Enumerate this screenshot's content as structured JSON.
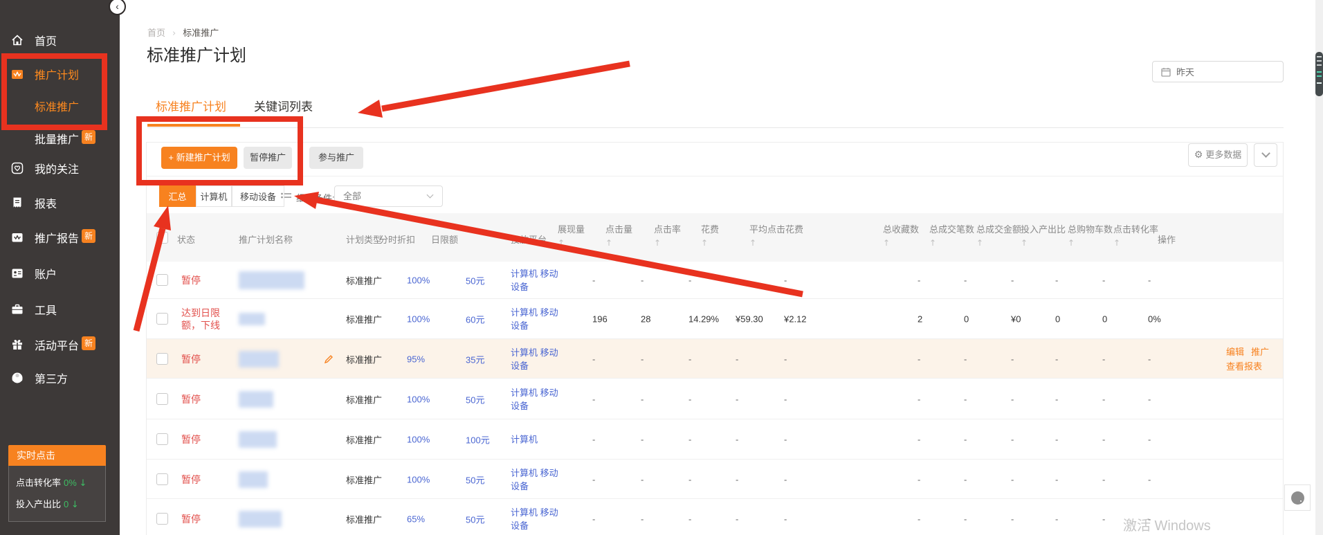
{
  "sidebar": {
    "items": [
      {
        "label": "首页",
        "icon": "home-icon"
      },
      {
        "label": "推广计划",
        "icon": "campaign-icon",
        "active": true
      },
      {
        "label": "标准推广",
        "submenu": true,
        "active": true
      },
      {
        "label": "批量推广",
        "submenu": true,
        "badge": "新"
      },
      {
        "label": "我的关注",
        "icon": "heart-icon"
      },
      {
        "label": "报表",
        "icon": "report-icon"
      },
      {
        "label": "推广报告",
        "icon": "promo-report-icon",
        "badge": "新"
      },
      {
        "label": "账户",
        "icon": "account-icon"
      },
      {
        "label": "工具",
        "icon": "tools-icon"
      },
      {
        "label": "活动平台",
        "icon": "activity-icon",
        "badge": "新"
      },
      {
        "label": "第三方",
        "icon": "third-party-icon"
      }
    ],
    "realtime_panel": {
      "title": "实时点击",
      "metrics": [
        {
          "label": "点击转化率",
          "value": "0%",
          "trend": "down"
        },
        {
          "label": "投入产出比",
          "value": "0",
          "trend": "down"
        }
      ]
    }
  },
  "breadcrumb": {
    "home": "首页",
    "separator": "›",
    "current": "标准推广"
  },
  "page_title": "标准推广计划",
  "date_filter": {
    "value": "昨天"
  },
  "tabs": [
    {
      "label": "标准推广计划",
      "active": true
    },
    {
      "label": "关键词列表",
      "active": false
    }
  ],
  "toolbar": {
    "new_plan": "新建推广计划",
    "plus": "+",
    "pause": "暂停推广",
    "join": "参与推广",
    "more_data": "更多数据"
  },
  "filters": {
    "segments": [
      {
        "label": "汇总",
        "active": true
      },
      {
        "label": "计算机",
        "active": false
      },
      {
        "label": "移动设备",
        "active": false
      }
    ],
    "condition_label": "细分条件:",
    "condition_value": "全部"
  },
  "table": {
    "columns": [
      {
        "key": "check",
        "label": "",
        "type": "checkbox"
      },
      {
        "key": "status",
        "label": "状态"
      },
      {
        "key": "name",
        "label": "推广计划名称"
      },
      {
        "key": "plan_type",
        "label": "计划类型"
      },
      {
        "key": "discount",
        "label": "分时折扣"
      },
      {
        "key": "limit",
        "label": "日限额"
      },
      {
        "key": "platform",
        "label": "投放平台"
      },
      {
        "key": "impressions",
        "label": "展现量",
        "sortable": true
      },
      {
        "key": "clicks",
        "label": "点击量",
        "sortable": true
      },
      {
        "key": "ctr",
        "label": "点击率",
        "sortable": true
      },
      {
        "key": "cost",
        "label": "花费",
        "sortable": true
      },
      {
        "key": "avg_cpc",
        "label": "平均点击花费",
        "sortable": true
      },
      {
        "key": "favorites",
        "label": "总收藏数",
        "sortable": true
      },
      {
        "key": "orders",
        "label": "总成交笔数",
        "sortable": true
      },
      {
        "key": "order_amount",
        "label": "总成交金额",
        "sortable": true
      },
      {
        "key": "roi",
        "label": "投入产出比",
        "sortable": true
      },
      {
        "key": "carts",
        "label": "总购物车数",
        "sortable": true
      },
      {
        "key": "conv_rate",
        "label": "点击转化率",
        "sortable": true
      },
      {
        "key": "actions",
        "label": "操作"
      }
    ],
    "rows": [
      {
        "status": [
          "暂停"
        ],
        "plan_type": "标准推广",
        "discount": "100%",
        "limit": "50元",
        "platform": [
          "计算机 移动",
          "设备"
        ],
        "metrics": [
          "-",
          "-",
          "-",
          "-",
          "-",
          "-",
          "-",
          "-",
          "-",
          "-",
          "-"
        ]
      },
      {
        "status": [
          "达到日限",
          "额，下线"
        ],
        "plan_type": "标准推广",
        "discount": "100%",
        "limit": "60元",
        "platform": [
          "计算机 移动",
          "设备"
        ],
        "metrics": [
          "196",
          "28",
          "14.29%",
          "¥59.30",
          "¥2.12",
          "2",
          "0",
          "¥0",
          "0",
          "0",
          "0%"
        ]
      },
      {
        "status": [
          "暂停"
        ],
        "highlighted": true,
        "editable": true,
        "plan_type": "标准推广",
        "discount": "95%",
        "limit": "35元",
        "platform": [
          "计算机 移动",
          "设备"
        ],
        "metrics": [
          "-",
          "-",
          "-",
          "-",
          "-",
          "-",
          "-",
          "-",
          "-",
          "-",
          "-"
        ],
        "actions": {
          "line1": [
            "编辑",
            "推广"
          ],
          "line2": "查看报表"
        }
      },
      {
        "status": [
          "暂停"
        ],
        "plan_type": "标准推广",
        "discount": "100%",
        "limit": "50元",
        "platform": [
          "计算机 移动",
          "设备"
        ],
        "metrics": [
          "-",
          "-",
          "-",
          "-",
          "-",
          "-",
          "-",
          "-",
          "-",
          "-",
          "-"
        ]
      },
      {
        "status": [
          "暂停"
        ],
        "plan_type": "标准推广",
        "discount": "100%",
        "limit": "100元",
        "platform": [
          "计算机"
        ],
        "metrics": [
          "-",
          "-",
          "-",
          "-",
          "-",
          "-",
          "-",
          "-",
          "-",
          "-",
          "-"
        ]
      },
      {
        "status": [
          "暂停"
        ],
        "plan_type": "标准推广",
        "discount": "100%",
        "limit": "50元",
        "platform": [
          "计算机 移动",
          "设备"
        ],
        "metrics": [
          "-",
          "-",
          "-",
          "-",
          "-",
          "-",
          "-",
          "-",
          "-",
          "-",
          "-"
        ]
      },
      {
        "status": [
          "暂停"
        ],
        "plan_type": "标准推广",
        "discount": "65%",
        "limit": "50元",
        "platform": [
          "计算机 移动",
          "设备"
        ],
        "metrics": [
          "-",
          "-",
          "-",
          "-",
          "-",
          "-",
          "-",
          "-",
          "-",
          "-",
          "-"
        ]
      }
    ]
  },
  "watermark": "激活 Windows",
  "colors": {
    "accent_orange": "#f78220",
    "status_red": "#e2504c",
    "link_blue": "#4a66d2",
    "annotation_red": "#e8321f",
    "sidebar_bg": "#3d3938",
    "highlight_row": "#fcf3e9",
    "trend_green": "#3dbd63"
  }
}
